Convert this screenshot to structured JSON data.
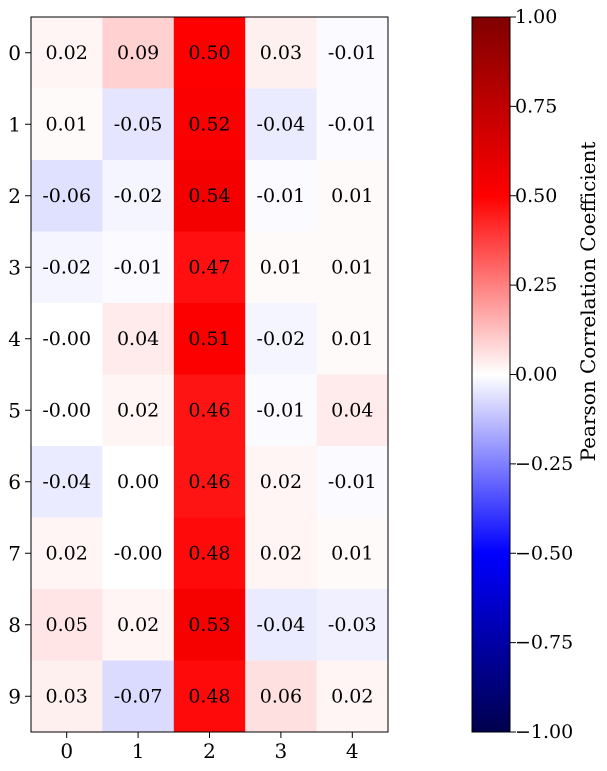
{
  "chart_data": {
    "type": "heatmap",
    "x_categories": [
      "0",
      "1",
      "2",
      "3",
      "4"
    ],
    "y_categories": [
      "0",
      "1",
      "2",
      "3",
      "4",
      "5",
      "6",
      "7",
      "8",
      "9"
    ],
    "values": [
      [
        0.02,
        0.09,
        0.5,
        0.03,
        -0.01
      ],
      [
        0.01,
        -0.05,
        0.52,
        -0.04,
        -0.01
      ],
      [
        -0.06,
        -0.02,
        0.54,
        -0.01,
        0.01
      ],
      [
        -0.02,
        -0.01,
        0.47,
        0.01,
        0.01
      ],
      [
        -0.0,
        0.04,
        0.51,
        -0.02,
        0.01
      ],
      [
        -0.0,
        0.02,
        0.46,
        -0.01,
        0.04
      ],
      [
        -0.04,
        0.0,
        0.46,
        0.02,
        -0.01
      ],
      [
        0.02,
        -0.0,
        0.48,
        0.02,
        0.01
      ],
      [
        0.05,
        0.02,
        0.53,
        -0.04,
        -0.03
      ],
      [
        0.03,
        -0.07,
        0.48,
        0.06,
        0.02
      ]
    ],
    "value_labels": [
      [
        "0.02",
        "0.09",
        "0.50",
        "0.03",
        "-0.01"
      ],
      [
        "0.01",
        "-0.05",
        "0.52",
        "-0.04",
        "-0.01"
      ],
      [
        "-0.06",
        "-0.02",
        "0.54",
        "-0.01",
        "0.01"
      ],
      [
        "-0.02",
        "-0.01",
        "0.47",
        "0.01",
        "0.01"
      ],
      [
        "-0.00",
        "0.04",
        "0.51",
        "-0.02",
        "0.01"
      ],
      [
        "-0.00",
        "0.02",
        "0.46",
        "-0.01",
        "0.04"
      ],
      [
        "-0.04",
        "0.00",
        "0.46",
        "0.02",
        "-0.01"
      ],
      [
        "0.02",
        "-0.00",
        "0.48",
        "0.02",
        "0.01"
      ],
      [
        "0.05",
        "0.02",
        "0.53",
        "-0.04",
        "-0.03"
      ],
      [
        "0.03",
        "-0.07",
        "0.48",
        "0.06",
        "0.02"
      ]
    ],
    "colormap": "seismic",
    "vmin": -1.0,
    "vmax": 1.0,
    "colorbar": {
      "label": "Pearson Correlation Coefficient",
      "ticks": [
        1.0,
        0.75,
        0.5,
        0.25,
        0.0,
        -0.25,
        -0.5,
        -0.75,
        -1.0
      ],
      "tick_labels": [
        "1.00",
        "0.75",
        "0.50",
        "0.25",
        "0.00",
        "−0.25",
        "−0.50",
        "−0.75",
        "−1.00"
      ]
    },
    "title": "",
    "xlabel": "",
    "ylabel": "",
    "grid": false,
    "legend": "none"
  }
}
